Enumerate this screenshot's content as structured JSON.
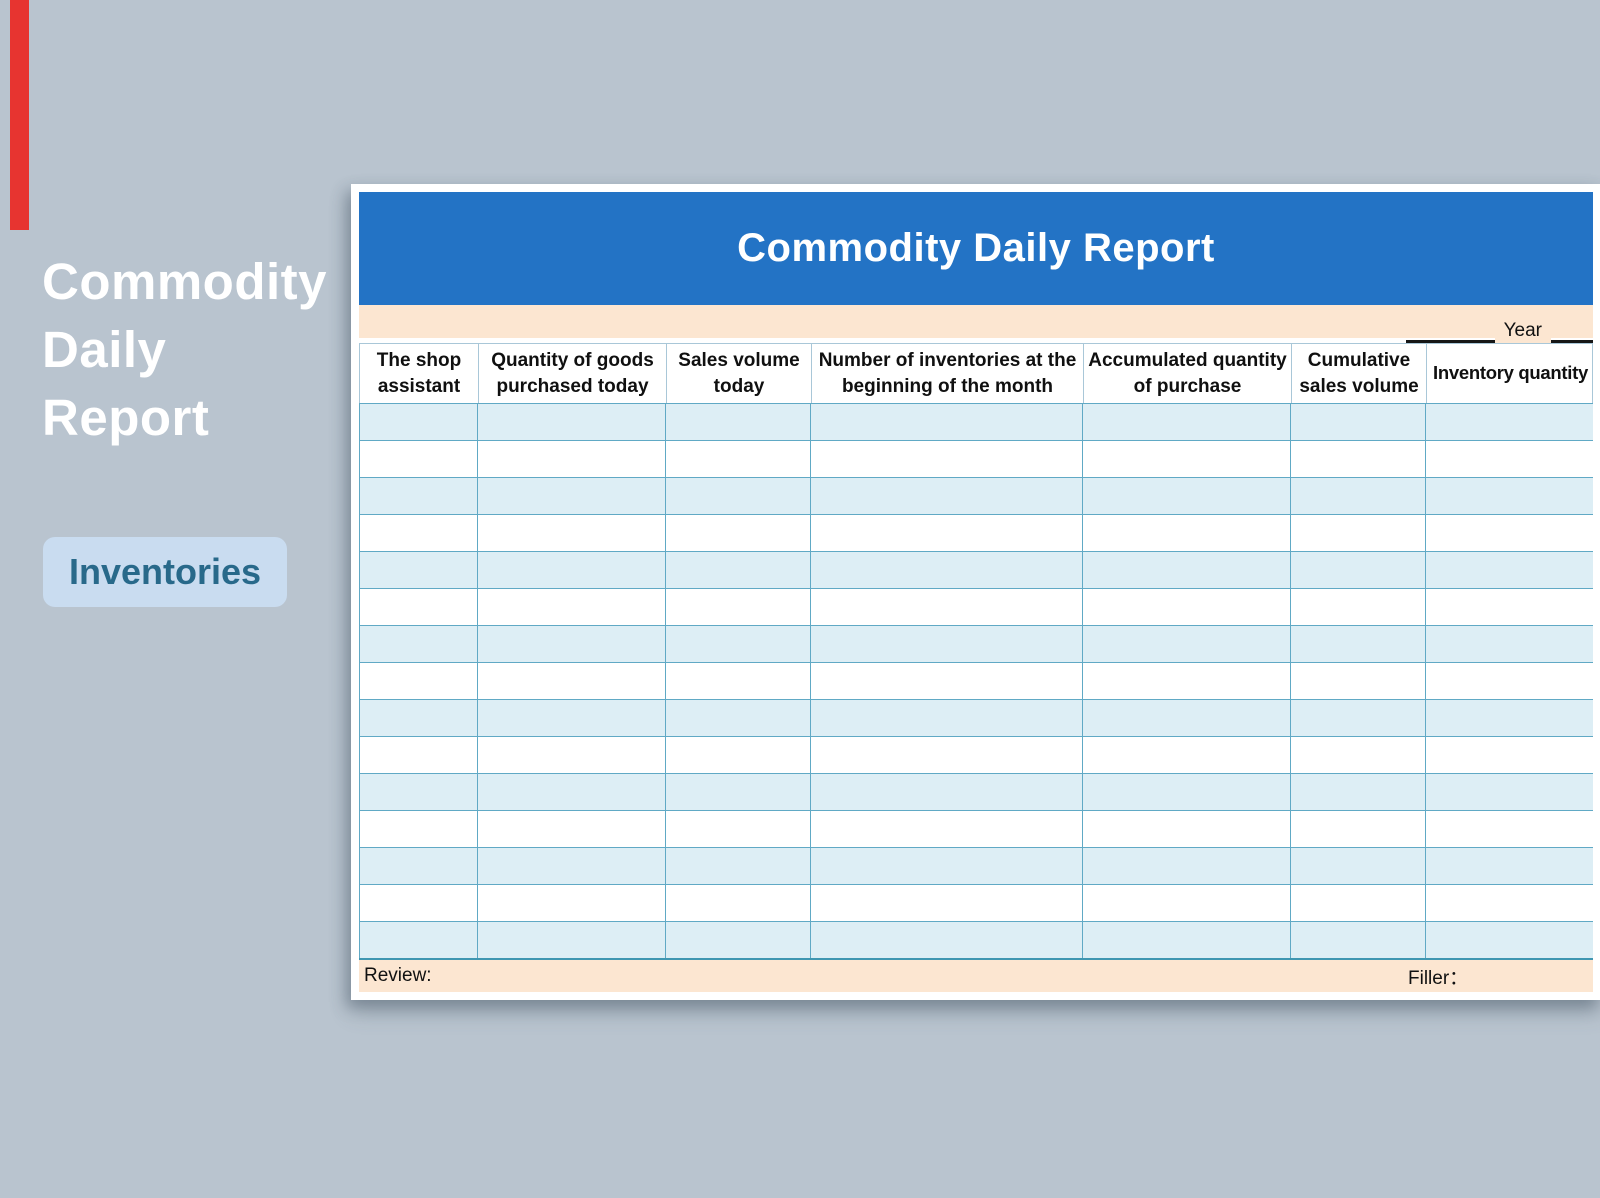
{
  "page": {
    "background_color": "#b9c4cf",
    "accent_strip_color": "#e73430"
  },
  "sidebar": {
    "title_lines": [
      "Commodity",
      "Daily",
      "Report"
    ],
    "tag_label": "Inventories",
    "tag_bg_color": "#c9dcf0",
    "tag_text_color": "#28698a"
  },
  "report": {
    "title": "Commodity Daily Report",
    "title_bar_color": "#2373c5",
    "band_color": "#fce6d1",
    "year_label": "Year",
    "columns": [
      "The shop assistant",
      "Quantity of goods purchased today",
      "Sales volume today",
      "Number of inventories at the beginning of the month",
      "Accumulated quantity of purchase",
      "Cumulative sales volume",
      "Inventory quantity"
    ],
    "row_count": 15,
    "row_alt_color": "#ddeef5",
    "grid_line_color": "#60a9c5",
    "footer": {
      "review_label": "Review:",
      "filler_label": "Filler："
    }
  }
}
